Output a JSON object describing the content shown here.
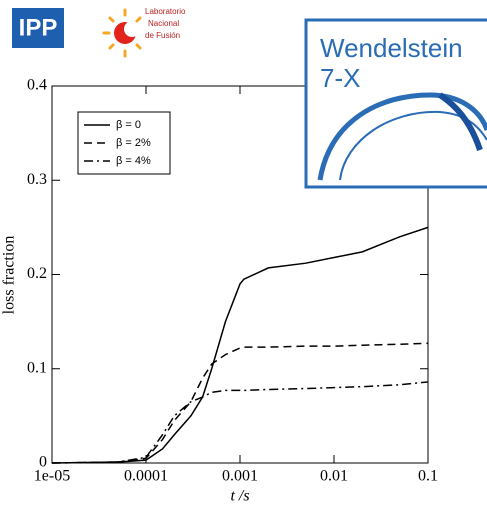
{
  "logos": {
    "ipp": "IPP",
    "lab": [
      "Laboratorio",
      "Nacional",
      "de Fusión"
    ],
    "w7x": [
      "Wendelstein",
      "7-X"
    ]
  },
  "chart_data": {
    "type": "line",
    "xlabel": "t /s",
    "ylabel": "loss fraction",
    "xscale": "log",
    "xlim": [
      1e-05,
      0.1
    ],
    "ylim": [
      0,
      0.4
    ],
    "xticks": [
      {
        "value": 1e-05,
        "label": "1e-05"
      },
      0.0001,
      0.001,
      0.01,
      0.1
    ],
    "yticks": [
      0,
      0.1,
      0.2,
      0.3,
      0.4
    ],
    "legend": "upper left",
    "x": [
      1e-05,
      5e-05,
      0.0001,
      0.00015,
      0.0002,
      0.0003,
      0.0004,
      0.0005,
      0.0007,
      0.001,
      0.0011,
      0.002,
      0.005,
      0.01,
      0.02,
      0.05,
      0.1
    ],
    "series": [
      {
        "name": "β = 0",
        "color": "#000000",
        "dash": "solid",
        "values": [
          0,
          0.001,
          0.003,
          0.015,
          0.03,
          0.05,
          0.07,
          0.1,
          0.15,
          0.19,
          0.195,
          0.207,
          0.212,
          0.218,
          0.224,
          0.24,
          0.25
        ]
      },
      {
        "name": "β = 2%",
        "color": "#000000",
        "dash": "dashed",
        "values": [
          0,
          0.001,
          0.005,
          0.025,
          0.045,
          0.065,
          0.09,
          0.105,
          0.115,
          0.122,
          0.123,
          0.123,
          0.124,
          0.124,
          0.125,
          0.126,
          0.127
        ]
      },
      {
        "name": "β = 4%",
        "color": "#000000",
        "dash": "dashdot",
        "values": [
          0,
          0.001,
          0.006,
          0.03,
          0.05,
          0.065,
          0.07,
          0.075,
          0.077,
          0.077,
          0.077,
          0.078,
          0.079,
          0.08,
          0.081,
          0.083,
          0.086
        ]
      }
    ]
  }
}
